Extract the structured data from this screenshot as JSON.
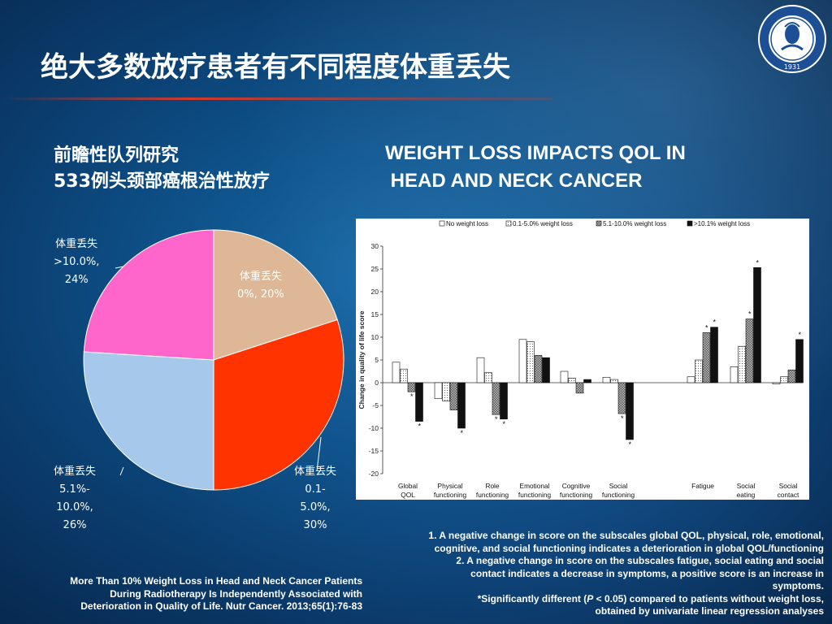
{
  "slide": {
    "title": "绝大多数放疗患者有不同程度体重丢失",
    "left_subtitle": [
      "前瞻性队列研究",
      "533例头颈部癌根治性放疗"
    ],
    "right_title": [
      "WEIGHT LOSS IMPACTS QOL IN",
      " HEAD AND NECK CANCER"
    ],
    "logo_year": "1931",
    "notes": [
      "1. A negative change in score on the subscales global QOL, physical, role, emotional,",
      "cognitive, and social functioning indicates a deterioration in global QOL/functioning",
      "2. A negative change in score on the subscales fatigue, social eating and social",
      "contact indicates a decrease in symptoms, a positive score is an increase in",
      "symptoms."
    ],
    "sig_note": {
      "star": "*",
      "text_a": "Significantly different (",
      "p": "P",
      "text_b": " < 0.05) compared to patients without weight loss,",
      "text_c": "obtained by univariate linear regression analyses"
    },
    "citation": [
      "More Than 10% Weight Loss in Head and Neck Cancer Patients",
      "During Radiotherapy Is Independently Associated with",
      "Deterioration in Quality of Life. Nutr Cancer. 2013;65(1):76-83"
    ]
  },
  "chart_data": [
    {
      "type": "pie",
      "slices": [
        {
          "label": [
            "体重丢失",
            "0%, 20%"
          ],
          "value": 20,
          "color": "#deb896"
        },
        {
          "label": [
            "体重丢失",
            "0.1-",
            "5.0%,",
            "30%"
          ],
          "value": 30,
          "color": "#ff3300"
        },
        {
          "label": [
            "体重丢失",
            "5.1%-",
            "10.0%,",
            "26%"
          ],
          "value": 26,
          "color": "#a6c8ea"
        },
        {
          "label": [
            "体重丢失",
            ">10.0%,",
            "24%"
          ],
          "value": 24,
          "color": "#ff66cc"
        }
      ]
    },
    {
      "type": "bar",
      "ylabel": "Change in quality of life score",
      "ylim": [
        -20,
        30
      ],
      "yticks": [
        30,
        25,
        20,
        15,
        10,
        5,
        0,
        -5,
        -10,
        -15,
        -20
      ],
      "categories": [
        [
          "Global",
          "QOL"
        ],
        [
          "Physical",
          "functioning"
        ],
        [
          "Role",
          "functioning"
        ],
        [
          "Emotional",
          "functioning"
        ],
        [
          "Cognitive",
          "functioning"
        ],
        [
          "Social",
          "functioning"
        ],
        [
          "Fatigue"
        ],
        [
          "Social",
          "eating"
        ],
        [
          "Social",
          "contact"
        ]
      ],
      "series": [
        {
          "name": "No weight loss",
          "pattern": "white",
          "values": [
            4.5,
            -3.5,
            5.5,
            9.5,
            2.5,
            1.2,
            1.3,
            3.5,
            -0.3
          ],
          "sig": [
            false,
            false,
            false,
            false,
            false,
            false,
            false,
            false,
            false
          ]
        },
        {
          "name": "0.1-5.0% weight loss",
          "pattern": "dotted",
          "values": [
            3.0,
            -4.0,
            2.2,
            9.0,
            1.0,
            0.7,
            5.0,
            8.0,
            1.3
          ],
          "sig": [
            false,
            false,
            false,
            false,
            false,
            false,
            false,
            false,
            false
          ]
        },
        {
          "name": "5.1-10.0% weight loss",
          "pattern": "hatched",
          "values": [
            -2.0,
            -6.0,
            -7.0,
            6.0,
            -2.3,
            -6.8,
            11.0,
            14.0,
            2.8
          ],
          "sig": [
            true,
            false,
            true,
            false,
            false,
            true,
            true,
            true,
            false
          ]
        },
        {
          "name": ">10.1% weight loss",
          "pattern": "black",
          "values": [
            -8.5,
            -10.0,
            -8.0,
            5.5,
            0.7,
            -12.5,
            12.2,
            25.3,
            9.5
          ],
          "sig": [
            true,
            true,
            true,
            false,
            false,
            true,
            true,
            true,
            true
          ]
        }
      ]
    }
  ]
}
